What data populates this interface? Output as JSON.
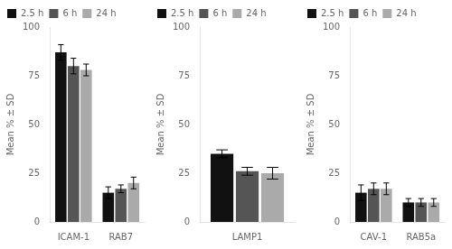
{
  "chart_data": [
    {
      "type": "bar",
      "categories": [
        "ICAM-1",
        "RAB7"
      ],
      "series": [
        {
          "name": "2.5 h",
          "color": "#111111",
          "values": [
            87,
            15
          ],
          "errors": [
            4,
            3
          ]
        },
        {
          "name": "6 h",
          "color": "#555555",
          "values": [
            80,
            17
          ],
          "errors": [
            4,
            2
          ]
        },
        {
          "name": "24 h",
          "color": "#aaaaaa",
          "values": [
            78,
            20
          ],
          "errors": [
            3,
            3
          ]
        }
      ],
      "ylabel": "Mean % ± SD",
      "ylim": [
        0,
        100
      ],
      "yticks": [
        0,
        25,
        50,
        75,
        100
      ],
      "grid": false,
      "legend": "upper left"
    },
    {
      "type": "bar",
      "categories": [
        "LAMP1"
      ],
      "series": [
        {
          "name": "2.5 h",
          "color": "#111111",
          "values": [
            35
          ],
          "errors": [
            2
          ]
        },
        {
          "name": "6 h",
          "color": "#555555",
          "values": [
            26
          ],
          "errors": [
            2
          ]
        },
        {
          "name": "24 h",
          "color": "#aaaaaa",
          "values": [
            25
          ],
          "errors": [
            3
          ]
        }
      ],
      "ylabel": "Mean % ± SD",
      "ylim": [
        0,
        100
      ],
      "yticks": [
        0,
        25,
        50,
        75,
        100
      ],
      "grid": false,
      "legend": "upper left"
    },
    {
      "type": "bar",
      "categories": [
        "CAV-1",
        "RAB5a"
      ],
      "series": [
        {
          "name": "2.5 h",
          "color": "#111111",
          "values": [
            15,
            10
          ],
          "errors": [
            4,
            2
          ]
        },
        {
          "name": "6 h",
          "color": "#555555",
          "values": [
            17,
            10
          ],
          "errors": [
            3,
            2
          ]
        },
        {
          "name": "24 h",
          "color": "#aaaaaa",
          "values": [
            17,
            10
          ],
          "errors": [
            3,
            2
          ]
        }
      ],
      "ylabel": "Mean % ± SD",
      "ylim": [
        0,
        100
      ],
      "yticks": [
        0,
        25,
        50,
        75,
        100
      ],
      "grid": false,
      "legend": "upper left"
    }
  ]
}
